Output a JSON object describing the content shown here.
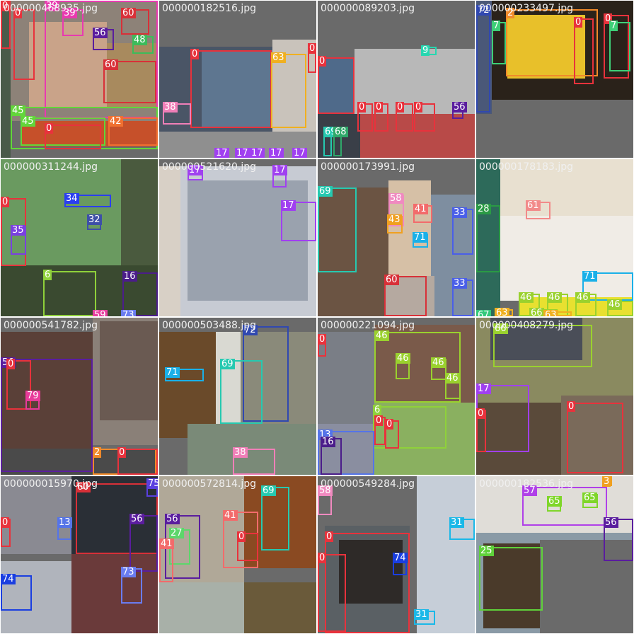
{
  "mosaic": {
    "cells": [
      {
        "filename": "000000468935.jpg",
        "labels": [
          "0",
          "0",
          "39",
          "39",
          "60",
          "56",
          "48",
          "60",
          "45",
          "45",
          "42",
          "0"
        ]
      },
      {
        "filename": "000000182516.jpg",
        "labels": [
          "0",
          "63",
          "38",
          "0",
          "17",
          "17",
          "17",
          "17",
          "17"
        ]
      },
      {
        "filename": "000000089203.jpg",
        "labels": [
          "9",
          "0",
          "0",
          "0",
          "0",
          "0",
          "56",
          "69",
          "68"
        ]
      },
      {
        "filename": "000000233497.jpg",
        "labels": [
          "72",
          "7",
          "2",
          "0",
          "0",
          "7"
        ]
      },
      {
        "filename": "000000311244.jpg",
        "labels": [
          "0",
          "34",
          "32",
          "35",
          "6",
          "16",
          "59",
          "73"
        ]
      },
      {
        "filename": "000000521620.jpg",
        "labels": [
          "17",
          "17",
          "17"
        ]
      },
      {
        "filename": "000000173991.jpg",
        "labels": [
          "69",
          "58",
          "43",
          "41",
          "33",
          "71",
          "60",
          "33"
        ]
      },
      {
        "filename": "000000178183.jpg",
        "labels": [
          "28",
          "61",
          "71",
          "46",
          "46",
          "46",
          "46",
          "67",
          "63",
          "66",
          "63"
        ]
      },
      {
        "filename": "000000541782.jpg",
        "labels": [
          "56",
          "0",
          "79",
          "2",
          "0"
        ]
      },
      {
        "filename": "000000503488.jpg",
        "labels": [
          "72",
          "71",
          "69",
          "38"
        ]
      },
      {
        "filename": "000000221094.jpg",
        "labels": [
          "0",
          "46",
          "46",
          "46",
          "46",
          "6",
          "0",
          "0",
          "13",
          "16"
        ]
      },
      {
        "filename": "000000408279.jpg",
        "labels": [
          "66",
          "17",
          "0",
          "0"
        ]
      },
      {
        "filename": "000000015970.jpg",
        "labels": [
          "60",
          "75",
          "56",
          "13",
          "74",
          "73",
          "0"
        ]
      },
      {
        "filename": "000000572814.jpg",
        "labels": [
          "69",
          "56",
          "27",
          "41",
          "41",
          "0"
        ]
      },
      {
        "filename": "000000549284.jpg",
        "labels": [
          "58",
          "0",
          "31",
          "74",
          "0",
          "31"
        ]
      },
      {
        "filename": "000000182536.jpg",
        "labels": [
          "57",
          "65",
          "65",
          "25",
          "56",
          "3"
        ]
      }
    ]
  }
}
